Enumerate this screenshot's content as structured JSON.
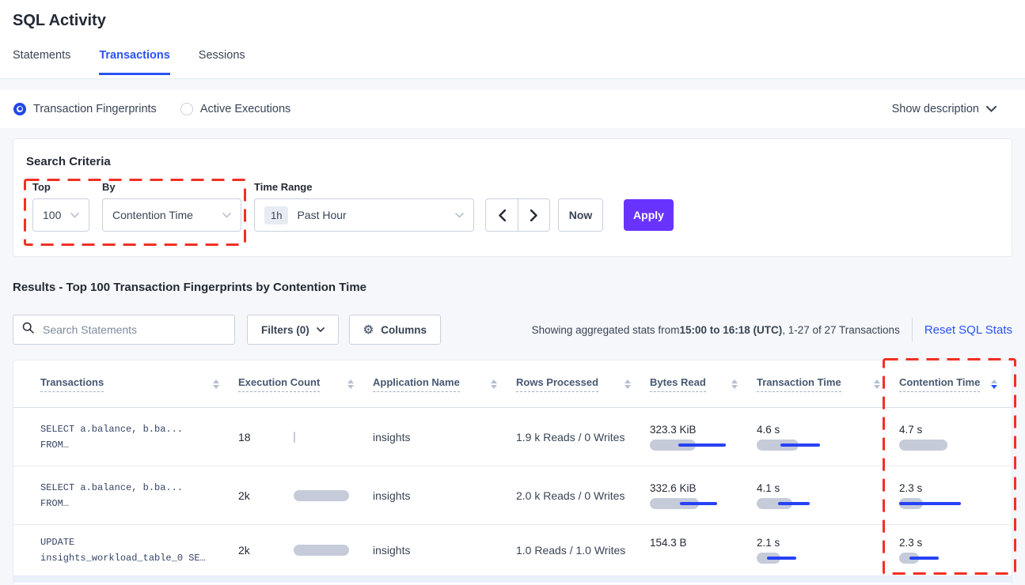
{
  "page": {
    "title": "SQL Activity"
  },
  "tabs": [
    {
      "label": "Statements",
      "active": false
    },
    {
      "label": "Transactions",
      "active": true
    },
    {
      "label": "Sessions",
      "active": false
    }
  ],
  "view_toggle": {
    "options": [
      {
        "label": "Transaction Fingerprints",
        "selected": true
      },
      {
        "label": "Active Executions",
        "selected": false
      }
    ],
    "show_description_label": "Show description"
  },
  "search_criteria": {
    "heading": "Search Criteria",
    "top": {
      "label": "Top",
      "value": "100"
    },
    "by": {
      "label": "By",
      "value": "Contention Time"
    },
    "time_range": {
      "label": "Time Range",
      "badge": "1h",
      "value": "Past Hour"
    },
    "now_label": "Now",
    "apply_label": "Apply"
  },
  "results": {
    "heading": "Results - Top 100 Transaction Fingerprints by Contention Time",
    "search_placeholder": "Search Statements",
    "filters_label": "Filters (0)",
    "columns_label": "Columns",
    "stats_prefix": "Showing aggregated stats from ",
    "stats_range": "15:00 to 16:18 (UTC)",
    "stats_suffix": ", 1-27 of 27 Transactions",
    "reset_label": "Reset SQL Stats"
  },
  "table": {
    "columns": [
      {
        "label": "Transactions",
        "sort": "none"
      },
      {
        "label": "Execution Count",
        "sort": "none"
      },
      {
        "label": "Application Name",
        "sort": "none"
      },
      {
        "label": "Rows Processed",
        "sort": "none"
      },
      {
        "label": "Bytes Read",
        "sort": "none"
      },
      {
        "label": "Transaction Time",
        "sort": "none"
      },
      {
        "label": "Contention Time",
        "sort": "desc"
      }
    ],
    "rows": [
      {
        "transaction_line1": "SELECT a.balance, b.ba...",
        "transaction_line2": "FROM…",
        "execution_count": "18",
        "execution_bar": {
          "bar": 2
        },
        "application": "insights",
        "rows_processed": "1.9 k Reads / 0 Writes",
        "bytes_read": {
          "value": "323.3 KiB",
          "bar": 58,
          "dev": [
            36,
            96
          ]
        },
        "transaction_time": {
          "value": "4.6 s",
          "bar": 53,
          "dev": [
            30,
            80
          ]
        },
        "contention_time": {
          "value": "4.7 s",
          "bar": 61,
          "dev": null
        }
      },
      {
        "transaction_line1": "SELECT a.balance, b.ba...",
        "transaction_line2": "FROM…",
        "execution_count": "2k",
        "execution_bar": {
          "bar": 70
        },
        "application": "insights",
        "rows_processed": "2.0 k Reads / 0 Writes",
        "bytes_read": {
          "value": "332.6 KiB",
          "bar": 62,
          "dev": [
            38,
            85
          ]
        },
        "transaction_time": {
          "value": "4.1 s",
          "bar": 45,
          "dev": [
            27,
            67
          ]
        },
        "contention_time": {
          "value": "2.3 s",
          "bar": 30,
          "dev": [
            0,
            78
          ]
        }
      },
      {
        "transaction_line1": "UPDATE",
        "transaction_line2": "insights_workload_table_0 SE…",
        "execution_count": "2k",
        "execution_bar": {
          "bar": 70
        },
        "application": "insights",
        "rows_processed": "1.0 Reads / 1.0 Writes",
        "bytes_read": {
          "value": "154.3 B",
          "bar": 0,
          "dev": null
        },
        "transaction_time": {
          "value": "2.1 s",
          "bar": 30,
          "dev": [
            13,
            50
          ]
        },
        "contention_time": {
          "value": "2.3 s",
          "bar": 25,
          "dev": [
            13,
            50
          ]
        }
      }
    ]
  },
  "icons": {
    "gear": "⚙"
  },
  "annotations": {
    "color": "#F13024"
  },
  "colors": {
    "accent_blue": "#2952F5",
    "bar_gray": "#C6CBDA",
    "bar_blue": "#2742F5",
    "apply_purple": "#6933FF"
  }
}
